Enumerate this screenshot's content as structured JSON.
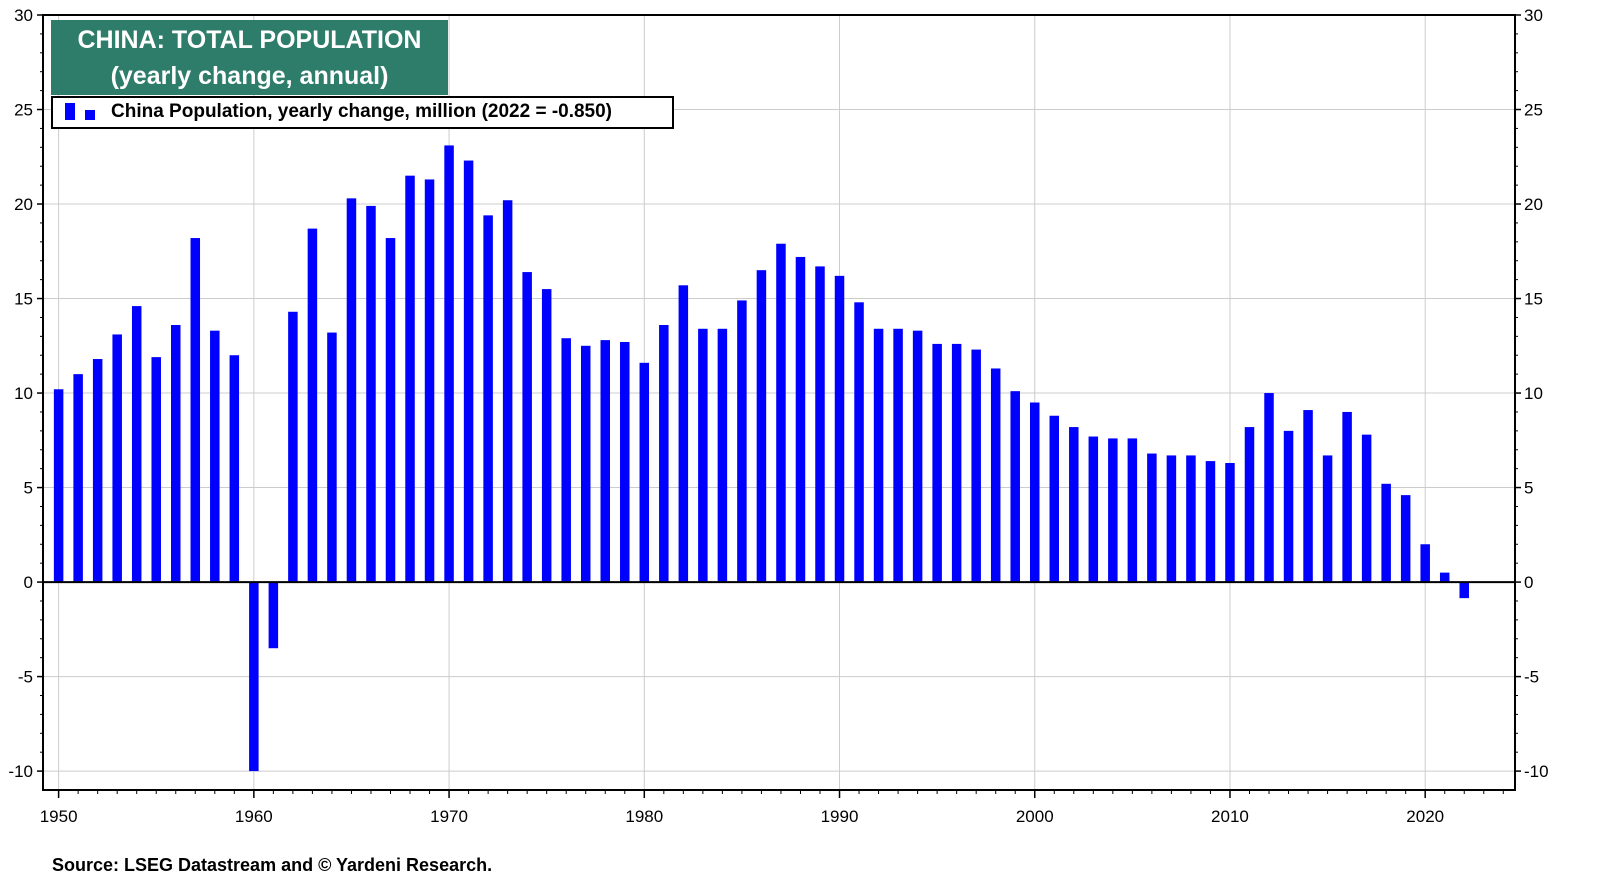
{
  "title_line1": "CHINA: TOTAL POPULATION",
  "title_line2": "(yearly change, annual)",
  "legend_label": "China Population, yearly change, million (2022 = -0.850)",
  "source": "Source: LSEG Datastream and © Yardeni Research.",
  "colors": {
    "bar": "#0000ff",
    "title_bg": "#2e7d6b",
    "grid": "#cccccc"
  },
  "chart_data": {
    "type": "bar",
    "title": "CHINA: TOTAL POPULATION",
    "subtitle": "(yearly change, annual)",
    "xlabel": "",
    "ylabel": "",
    "ylim": [
      -11,
      30
    ],
    "y_ticks": [
      -10,
      -5,
      0,
      5,
      10,
      15,
      20,
      25,
      30
    ],
    "x_ticks": [
      1950,
      1960,
      1970,
      1980,
      1990,
      2000,
      2010,
      2020
    ],
    "grid": true,
    "legend_position": "top-left",
    "series": [
      {
        "name": "China Population, yearly change, million (2022 = -0.850)",
        "x": [
          1950,
          1951,
          1952,
          1953,
          1954,
          1955,
          1956,
          1957,
          1958,
          1959,
          1960,
          1961,
          1962,
          1963,
          1964,
          1965,
          1966,
          1967,
          1968,
          1969,
          1970,
          1971,
          1972,
          1973,
          1974,
          1975,
          1976,
          1977,
          1978,
          1979,
          1980,
          1981,
          1982,
          1983,
          1984,
          1985,
          1986,
          1987,
          1988,
          1989,
          1990,
          1991,
          1992,
          1993,
          1994,
          1995,
          1996,
          1997,
          1998,
          1999,
          2000,
          2001,
          2002,
          2003,
          2004,
          2005,
          2006,
          2007,
          2008,
          2009,
          2010,
          2011,
          2012,
          2013,
          2014,
          2015,
          2016,
          2017,
          2018,
          2019,
          2020,
          2021,
          2022
        ],
        "values": [
          10.2,
          11.0,
          11.8,
          13.1,
          14.6,
          11.9,
          13.6,
          18.2,
          13.3,
          12.0,
          -10.0,
          -3.5,
          14.3,
          18.7,
          13.2,
          20.3,
          19.9,
          18.2,
          21.5,
          21.3,
          23.1,
          22.3,
          19.4,
          20.2,
          16.4,
          15.5,
          12.9,
          12.5,
          12.8,
          12.7,
          11.6,
          13.6,
          15.7,
          13.4,
          13.4,
          14.9,
          16.5,
          17.9,
          17.2,
          16.7,
          16.2,
          14.8,
          13.4,
          13.4,
          13.3,
          12.6,
          12.6,
          12.3,
          11.3,
          10.1,
          9.5,
          8.8,
          8.2,
          7.7,
          7.6,
          7.6,
          6.8,
          6.7,
          6.7,
          6.4,
          6.3,
          8.2,
          10.0,
          8.0,
          9.1,
          6.7,
          9.0,
          7.8,
          5.2,
          4.6,
          2.0,
          0.5,
          -0.85
        ]
      }
    ]
  }
}
